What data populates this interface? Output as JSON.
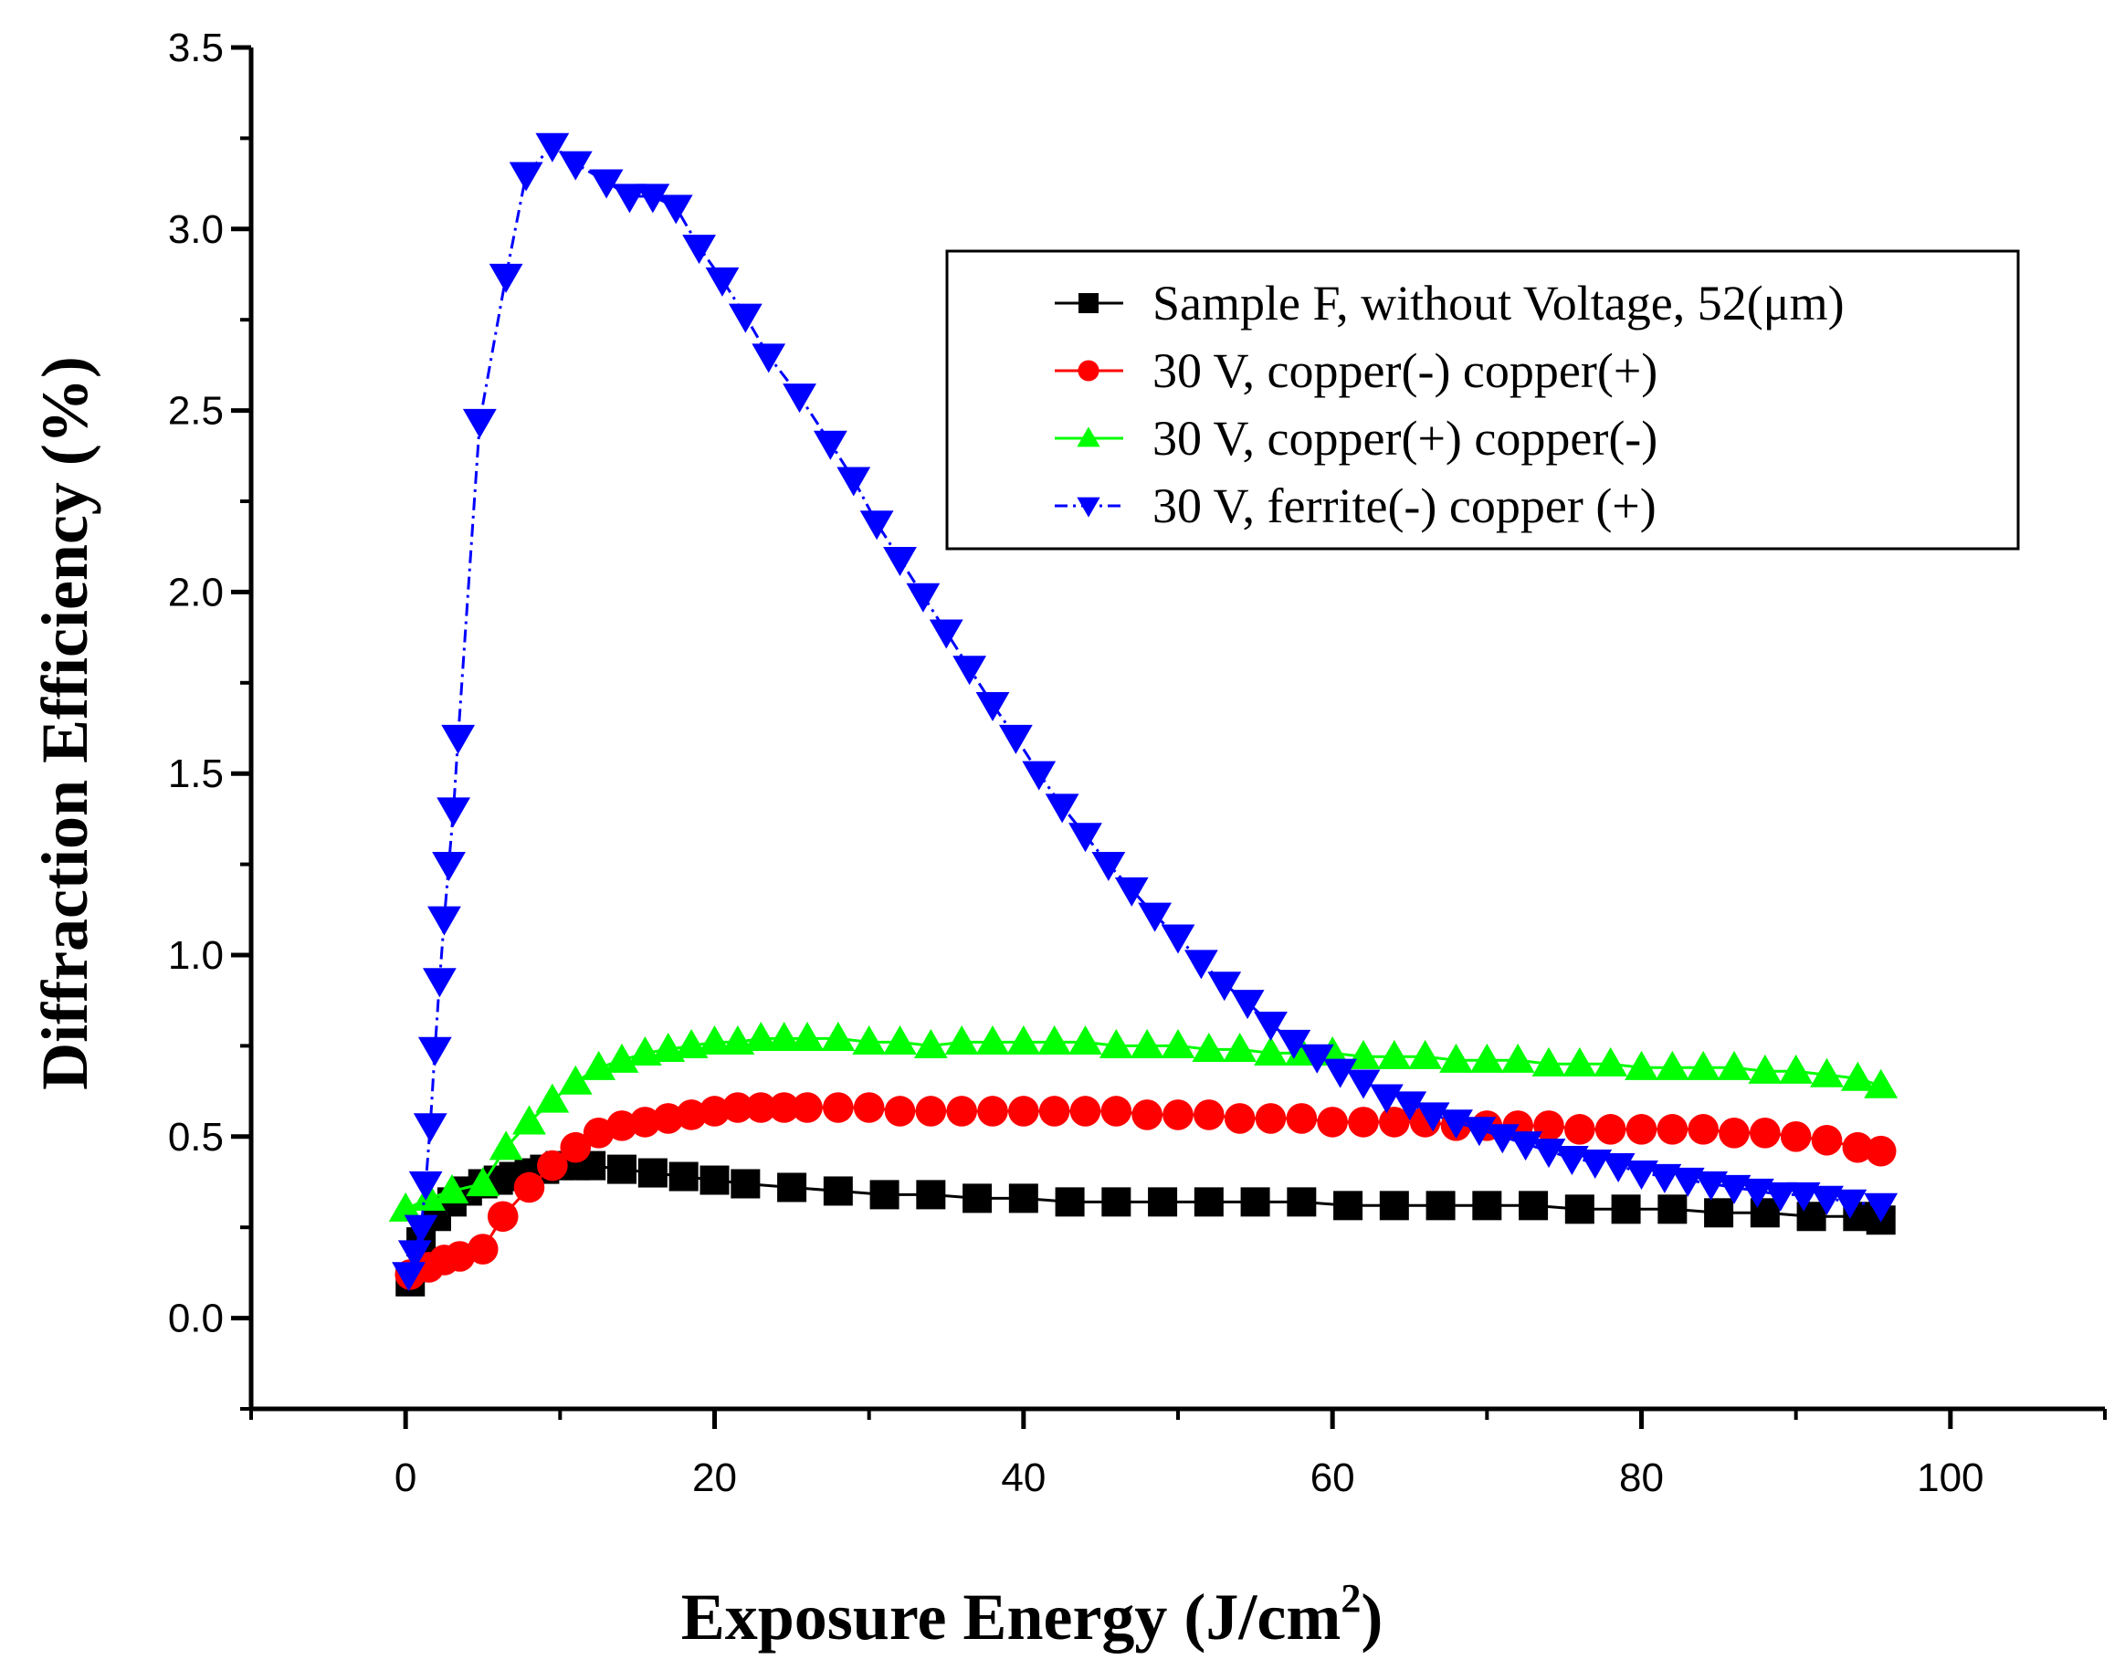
{
  "chart_data": {
    "type": "scatter",
    "title": "",
    "xlabel": "Exposure Energy (J/cm",
    "xlabel_sup": "2",
    "xlabel_end": ")",
    "ylabel": "Diffraction Efficiency (%)",
    "xlim": [
      -10,
      110
    ],
    "ylim": [
      -0.25,
      3.5
    ],
    "xticks": [
      0,
      20,
      40,
      60,
      80,
      100
    ],
    "xtick_labels": [
      "0",
      "20",
      "40",
      "60",
      "80",
      "100"
    ],
    "yticks": [
      0.0,
      0.5,
      1.0,
      1.5,
      2.0,
      2.5,
      3.0,
      3.5
    ],
    "ytick_labels": [
      "0.0",
      "0.5",
      "1.0",
      "1.5",
      "2.0",
      "2.5",
      "3.0",
      "3.5"
    ],
    "legend_position": "top-right",
    "series": [
      {
        "name": "Sample F, without Voltage, 52(μm)",
        "color": "#000000",
        "marker": "square",
        "line": "solid",
        "x": [
          0.3,
          1,
          2,
          3,
          4,
          5,
          6,
          7,
          8,
          9,
          10,
          11,
          12,
          14,
          16,
          18,
          20,
          22,
          25,
          28,
          31,
          34,
          37,
          40,
          43,
          46,
          49,
          52,
          55,
          58,
          61,
          64,
          67,
          70,
          73,
          76,
          79,
          82,
          85,
          88,
          91,
          94,
          95.5
        ],
        "y": [
          0.1,
          0.21,
          0.28,
          0.32,
          0.35,
          0.37,
          0.38,
          0.39,
          0.4,
          0.41,
          0.42,
          0.42,
          0.42,
          0.41,
          0.4,
          0.39,
          0.38,
          0.37,
          0.36,
          0.35,
          0.34,
          0.34,
          0.33,
          0.33,
          0.32,
          0.32,
          0.32,
          0.32,
          0.32,
          0.32,
          0.31,
          0.31,
          0.31,
          0.31,
          0.31,
          0.3,
          0.3,
          0.3,
          0.29,
          0.29,
          0.28,
          0.28,
          0.27
        ]
      },
      {
        "name": "30 V, copper(-) copper(+)",
        "color": "#ff0000",
        "marker": "circle",
        "line": "solid",
        "x": [
          0.3,
          1.5,
          2.5,
          3.5,
          5,
          6.3,
          8,
          9.5,
          11,
          12.5,
          14,
          15.5,
          17,
          18.5,
          20,
          21.5,
          23,
          24.5,
          26,
          28,
          30,
          32,
          34,
          36,
          38,
          40,
          42,
          44,
          46,
          48,
          50,
          52,
          54,
          56,
          58,
          60,
          62,
          64,
          66,
          68,
          70,
          72,
          74,
          76,
          78,
          80,
          82,
          84,
          86,
          88,
          90,
          92,
          94,
          95.5
        ],
        "y": [
          0.12,
          0.14,
          0.16,
          0.17,
          0.19,
          0.28,
          0.36,
          0.42,
          0.47,
          0.51,
          0.53,
          0.54,
          0.55,
          0.56,
          0.57,
          0.58,
          0.58,
          0.58,
          0.58,
          0.58,
          0.58,
          0.57,
          0.57,
          0.57,
          0.57,
          0.57,
          0.57,
          0.57,
          0.57,
          0.56,
          0.56,
          0.56,
          0.55,
          0.55,
          0.55,
          0.54,
          0.54,
          0.54,
          0.54,
          0.53,
          0.53,
          0.53,
          0.53,
          0.52,
          0.52,
          0.52,
          0.52,
          0.52,
          0.51,
          0.51,
          0.5,
          0.49,
          0.47,
          0.46
        ]
      },
      {
        "name": "30 V, copper(+) copper(-)",
        "color": "#00ff00",
        "marker": "triangle-up",
        "line": "solid",
        "x": [
          0,
          1.5,
          3,
          5,
          6.5,
          8,
          9.5,
          11,
          12.5,
          14,
          15.5,
          17,
          18.5,
          20,
          21.5,
          23,
          24.5,
          26,
          28,
          30,
          32,
          34,
          36,
          38,
          40,
          42,
          44,
          46,
          48,
          50,
          52,
          54,
          56,
          58,
          60,
          62,
          64,
          66,
          68,
          70,
          72,
          74,
          76,
          78,
          80,
          82,
          84,
          86,
          88,
          90,
          92,
          94,
          95.5
        ],
        "y": [
          0.3,
          0.33,
          0.35,
          0.37,
          0.47,
          0.54,
          0.6,
          0.65,
          0.69,
          0.71,
          0.73,
          0.74,
          0.75,
          0.76,
          0.76,
          0.77,
          0.77,
          0.77,
          0.77,
          0.76,
          0.76,
          0.75,
          0.76,
          0.76,
          0.76,
          0.76,
          0.76,
          0.75,
          0.75,
          0.75,
          0.74,
          0.74,
          0.73,
          0.73,
          0.73,
          0.72,
          0.72,
          0.72,
          0.71,
          0.71,
          0.71,
          0.7,
          0.7,
          0.7,
          0.69,
          0.69,
          0.69,
          0.69,
          0.68,
          0.68,
          0.67,
          0.66,
          0.64
        ]
      },
      {
        "name": "30 V, ferrite(-) copper (+)",
        "color": "#0000ff",
        "marker": "triangle-down",
        "line": "dash-dot",
        "x": [
          0.2,
          0.6,
          1.0,
          1.3,
          1.6,
          1.9,
          2.2,
          2.5,
          2.8,
          3.1,
          3.4,
          4.8,
          6.5,
          7.8,
          9.5,
          11,
          13,
          14.5,
          16,
          17.5,
          19,
          20.5,
          22,
          23.5,
          25.5,
          27.5,
          29,
          30.5,
          32,
          33.5,
          35,
          36.5,
          38,
          39.5,
          41,
          42.5,
          44,
          45.5,
          47,
          48.5,
          50,
          51.5,
          53,
          54.5,
          56,
          57.5,
          59,
          60.5,
          62,
          63.5,
          65,
          66.5,
          68,
          69.5,
          71,
          72.5,
          74,
          75.5,
          77,
          78.5,
          80,
          81.5,
          83,
          84.5,
          86,
          87.5,
          89,
          90.5,
          92,
          93.5,
          95.5
        ],
        "y": [
          0.12,
          0.18,
          0.25,
          0.37,
          0.53,
          0.74,
          0.93,
          1.1,
          1.25,
          1.4,
          1.6,
          2.47,
          2.87,
          3.15,
          3.23,
          3.18,
          3.13,
          3.09,
          3.09,
          3.06,
          2.95,
          2.86,
          2.76,
          2.65,
          2.54,
          2.41,
          2.31,
          2.19,
          2.09,
          1.99,
          1.89,
          1.79,
          1.69,
          1.6,
          1.5,
          1.41,
          1.33,
          1.25,
          1.18,
          1.11,
          1.05,
          0.98,
          0.92,
          0.87,
          0.81,
          0.76,
          0.72,
          0.68,
          0.65,
          0.61,
          0.59,
          0.56,
          0.54,
          0.52,
          0.5,
          0.48,
          0.46,
          0.44,
          0.43,
          0.42,
          0.4,
          0.39,
          0.38,
          0.37,
          0.36,
          0.35,
          0.34,
          0.34,
          0.33,
          0.32,
          0.31
        ]
      }
    ]
  }
}
